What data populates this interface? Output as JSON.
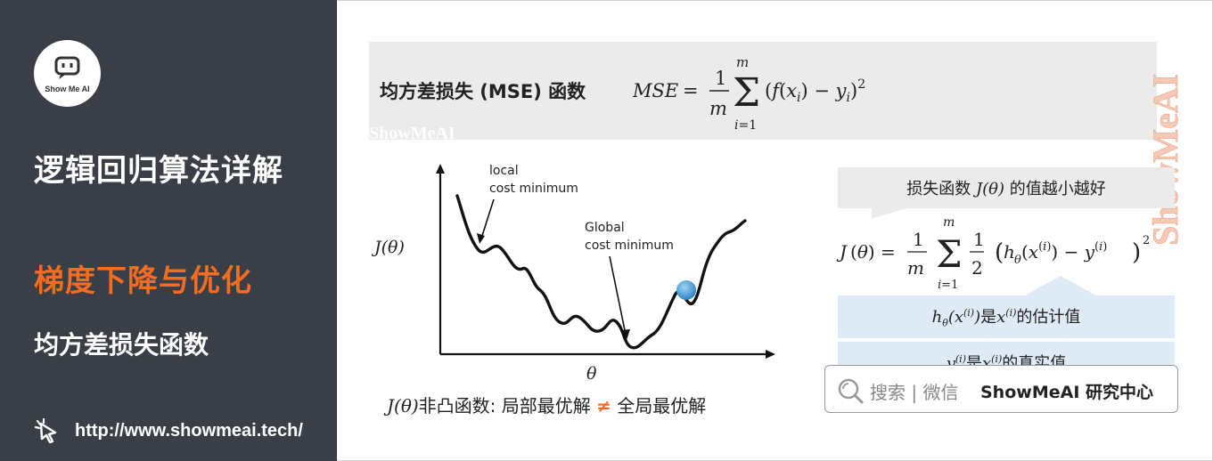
{
  "sidebar": {
    "logo_text": "Show Me AI",
    "title": "逻辑回归算法详解",
    "section": "梯度下降与优化",
    "subsection": "均方差损失函数",
    "url": "http://www.showmeai.tech/",
    "colors": {
      "background": "#3a3f47",
      "accent": "#f36c21"
    },
    "icons": [
      "robot-logo-icon",
      "cursor-click-icon"
    ]
  },
  "main": {
    "mse_label": "均方差损失 (MSE) 函数",
    "watermark_text": "ShowMeAI",
    "chart": {
      "y_axis_label": "J(θ)",
      "x_axis_label": "θ",
      "annotation_local_1": "local",
      "annotation_local_2": "cost minimum",
      "annotation_global_1": "Global",
      "annotation_global_2": "cost minimum",
      "ball_color": "#4aa3df"
    },
    "chart_caption_a": "J(θ)",
    "chart_caption_b": "非凸函数: 局部最优解",
    "chart_caption_ne": "≠",
    "chart_caption_c": "全局最优解",
    "bubble_prefix": "损失函数",
    "bubble_symbol": "J(θ)",
    "bubble_suffix": "的值越小越好",
    "box1_mid": "是",
    "box1_end": "的估计值",
    "box2_mid": "是",
    "box2_end": "的真实值",
    "search": {
      "label": "搜索 | 微信",
      "brand": "ShowMeAI 研究中心",
      "icon": "search-icon"
    }
  }
}
